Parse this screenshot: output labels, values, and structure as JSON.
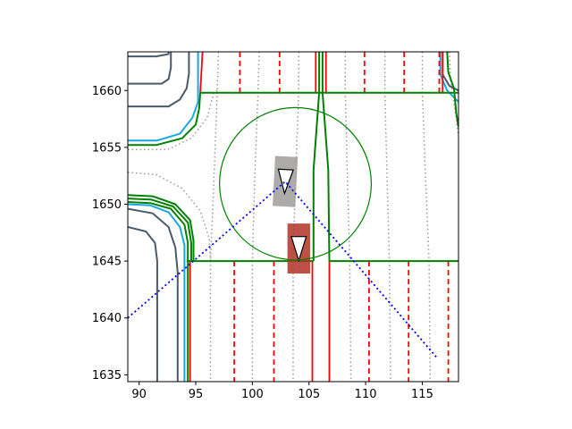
{
  "chart_data": {
    "type": "scatter",
    "title": "",
    "xlabel": "",
    "ylabel": "",
    "xlim": [
      89.0,
      118.2
    ],
    "ylim": [
      1634.4,
      1663.4
    ],
    "xticks": [
      90,
      95,
      100,
      105,
      110,
      115
    ],
    "yticks": [
      1635,
      1640,
      1645,
      1650,
      1655,
      1660
    ],
    "grid": false,
    "legend": "none",
    "colors": {
      "lane_divider": "#ff0000",
      "road_edge": "#008000",
      "curb": "#4a5a6a",
      "sidewalk": "#1aa7e0",
      "centerline": "#999999",
      "view_cone": "#0000ff",
      "ego_vehicle": "#b03228",
      "other_vehicle": "#a09c9c",
      "circle": "#008000"
    },
    "ego_vehicle": {
      "x": 104.1,
      "y": 1646.1,
      "heading_deg": 270,
      "length": 4.4,
      "width": 2.0
    },
    "other_vehicle": {
      "x": 102.9,
      "y": 1652.0,
      "heading_deg": 273,
      "length": 4.4,
      "width": 2.0
    },
    "circle": {
      "center": [
        103.8,
        1651.8
      ],
      "radius": 6.7
    },
    "view_cone": [
      [
        89.0,
        1640.0
      ],
      [
        102.9,
        1652.0
      ],
      [
        116.3,
        1636.5
      ]
    ],
    "road_edges": [
      {
        "id": "top-edge",
        "points": [
          [
            95.4,
            1659.8
          ],
          [
            118.2,
            1659.8
          ]
        ]
      },
      {
        "id": "bottom-edge-left",
        "points": [
          [
            94.2,
            1645.0
          ],
          [
            105.4,
            1645.0
          ]
        ]
      },
      {
        "id": "bottom-edge-right",
        "points": [
          [
            106.8,
            1645.0
          ],
          [
            118.2,
            1645.0
          ]
        ]
      },
      {
        "id": "median-left",
        "points": [
          [
            105.9,
            1663.4
          ],
          [
            105.9,
            1659.8
          ],
          [
            105.4,
            1653.0
          ],
          [
            105.4,
            1645.0
          ]
        ]
      },
      {
        "id": "median-right",
        "points": [
          [
            106.2,
            1663.4
          ],
          [
            106.2,
            1659.8
          ],
          [
            106.7,
            1653.0
          ],
          [
            106.8,
            1645.0
          ]
        ]
      },
      {
        "id": "left-curb-lower-outer",
        "points": [
          [
            89.0,
            1650.2
          ],
          [
            91.0,
            1650.1
          ],
          [
            92.8,
            1649.6
          ],
          [
            94.0,
            1648.2
          ],
          [
            94.3,
            1646.6
          ],
          [
            94.3,
            1634.4
          ]
        ]
      },
      {
        "id": "left-curb-lower-inner",
        "points": [
          [
            89.0,
            1650.5
          ],
          [
            91.1,
            1650.4
          ],
          [
            93.0,
            1649.8
          ],
          [
            94.3,
            1648.4
          ],
          [
            94.6,
            1646.6
          ],
          [
            94.6,
            1645.0
          ]
        ]
      },
      {
        "id": "left-curb-lower-edge",
        "points": [
          [
            89.0,
            1650.8
          ],
          [
            91.2,
            1650.7
          ],
          [
            93.2,
            1650.0
          ],
          [
            94.5,
            1648.6
          ],
          [
            94.8,
            1646.8
          ],
          [
            94.8,
            1645.0
          ]
        ]
      },
      {
        "id": "left-curb-upper",
        "points": [
          [
            89.0,
            1655.2
          ],
          [
            91.5,
            1655.2
          ],
          [
            93.8,
            1655.8
          ],
          [
            95.0,
            1657.0
          ],
          [
            95.3,
            1658.4
          ],
          [
            95.4,
            1659.8
          ]
        ]
      },
      {
        "id": "right-curb-upper",
        "points": [
          [
            117.2,
            1663.4
          ],
          [
            117.3,
            1661.6
          ],
          [
            117.8,
            1660.2
          ],
          [
            118.0,
            1658.0
          ],
          [
            118.2,
            1656.8
          ]
        ]
      }
    ],
    "lane_dividers_solid": [
      {
        "id": "left-top",
        "points": [
          [
            95.6,
            1663.4
          ],
          [
            95.4,
            1659.8
          ]
        ]
      },
      {
        "id": "median-top-left",
        "points": [
          [
            105.6,
            1663.4
          ],
          [
            105.6,
            1659.8
          ]
        ]
      },
      {
        "id": "median-top-right",
        "points": [
          [
            106.5,
            1663.4
          ],
          [
            106.5,
            1659.8
          ]
        ]
      },
      {
        "id": "right-top",
        "points": [
          [
            116.8,
            1663.4
          ],
          [
            116.8,
            1659.8
          ]
        ]
      },
      {
        "id": "left-bottom",
        "points": [
          [
            94.5,
            1645.0
          ],
          [
            94.5,
            1634.4
          ]
        ]
      },
      {
        "id": "median-bottom-left",
        "points": [
          [
            105.3,
            1645.0
          ],
          [
            105.3,
            1634.4
          ]
        ]
      },
      {
        "id": "median-bottom-right",
        "points": [
          [
            106.8,
            1645.0
          ],
          [
            106.8,
            1634.4
          ]
        ]
      }
    ],
    "lane_dividers_dashed": [
      {
        "id": "top-1",
        "points": [
          [
            98.9,
            1663.4
          ],
          [
            98.9,
            1659.8
          ]
        ]
      },
      {
        "id": "top-2",
        "points": [
          [
            102.4,
            1663.4
          ],
          [
            102.4,
            1659.8
          ]
        ]
      },
      {
        "id": "top-3",
        "points": [
          [
            109.9,
            1663.4
          ],
          [
            109.9,
            1659.8
          ]
        ]
      },
      {
        "id": "top-4",
        "points": [
          [
            113.4,
            1663.4
          ],
          [
            113.4,
            1659.8
          ]
        ]
      },
      {
        "id": "top-5",
        "points": [
          [
            116.5,
            1663.4
          ],
          [
            116.5,
            1659.8
          ]
        ]
      },
      {
        "id": "bottom-1",
        "points": [
          [
            98.4,
            1645.0
          ],
          [
            98.4,
            1634.4
          ]
        ]
      },
      {
        "id": "bottom-2",
        "points": [
          [
            101.9,
            1645.0
          ],
          [
            101.9,
            1634.4
          ]
        ]
      },
      {
        "id": "bottom-3",
        "points": [
          [
            110.3,
            1645.0
          ],
          [
            110.3,
            1634.4
          ]
        ]
      },
      {
        "id": "bottom-4",
        "points": [
          [
            113.8,
            1645.0
          ],
          [
            113.8,
            1634.4
          ]
        ]
      },
      {
        "id": "bottom-5",
        "points": [
          [
            117.3,
            1645.0
          ],
          [
            117.3,
            1634.4
          ]
        ]
      }
    ],
    "curbs": [
      {
        "id": "corner-tl-1",
        "points": [
          [
            89.0,
            1663.0
          ],
          [
            91.5,
            1663.0
          ],
          [
            92.6,
            1663.2
          ],
          [
            92.6,
            1663.4
          ]
        ]
      },
      {
        "id": "corner-tl-2",
        "points": [
          [
            89.0,
            1660.6
          ],
          [
            92.0,
            1660.6
          ],
          [
            92.6,
            1661.0
          ],
          [
            92.8,
            1662.0
          ],
          [
            92.8,
            1663.4
          ]
        ]
      },
      {
        "id": "corner-tl-3",
        "points": [
          [
            89.0,
            1658.6
          ],
          [
            92.6,
            1658.6
          ],
          [
            93.6,
            1659.2
          ],
          [
            94.2,
            1660.2
          ],
          [
            94.4,
            1661.5
          ],
          [
            94.4,
            1663.4
          ]
        ]
      },
      {
        "id": "corner-bl-1",
        "points": [
          [
            89.0,
            1648.0
          ],
          [
            90.6,
            1647.6
          ],
          [
            91.4,
            1646.6
          ],
          [
            91.6,
            1645.0
          ],
          [
            91.6,
            1634.4
          ]
        ]
      },
      {
        "id": "corner-bl-2",
        "points": [
          [
            89.0,
            1649.6
          ],
          [
            91.2,
            1649.2
          ],
          [
            92.6,
            1648.0
          ],
          [
            93.2,
            1646.2
          ],
          [
            93.4,
            1644.0
          ],
          [
            93.4,
            1634.4
          ]
        ]
      },
      {
        "id": "corner-tr",
        "points": [
          [
            116.8,
            1663.4
          ],
          [
            116.8,
            1661.4
          ],
          [
            117.4,
            1660.4
          ],
          [
            118.2,
            1660.0
          ]
        ]
      }
    ],
    "sidewalks": [
      {
        "id": "sw-upper",
        "points": [
          [
            89.0,
            1655.6
          ],
          [
            91.6,
            1655.6
          ],
          [
            93.6,
            1656.2
          ],
          [
            94.7,
            1657.6
          ],
          [
            95.2,
            1659.0
          ],
          [
            95.2,
            1663.4
          ]
        ]
      },
      {
        "id": "sw-lower",
        "points": [
          [
            89.0,
            1650.0
          ],
          [
            91.0,
            1649.9
          ],
          [
            92.6,
            1649.3
          ],
          [
            93.6,
            1648.0
          ],
          [
            94.0,
            1646.4
          ],
          [
            94.0,
            1634.4
          ]
        ]
      },
      {
        "id": "sw-right",
        "points": [
          [
            116.6,
            1663.4
          ],
          [
            116.6,
            1661.4
          ],
          [
            117.2,
            1660.0
          ],
          [
            118.2,
            1659.0
          ]
        ]
      }
    ],
    "centerlines": [
      {
        "id": "cl-1",
        "points": [
          [
            97.0,
            1663.4
          ],
          [
            96.9,
            1660.0
          ],
          [
            96.6,
            1652.0
          ],
          [
            96.3,
            1645.0
          ],
          [
            96.3,
            1634.4
          ]
        ]
      },
      {
        "id": "cl-2",
        "points": [
          [
            100.6,
            1663.4
          ],
          [
            100.5,
            1660.0
          ],
          [
            100.2,
            1652.0
          ],
          [
            100.0,
            1645.0
          ],
          [
            100.0,
            1634.4
          ]
        ]
      },
      {
        "id": "cl-3",
        "points": [
          [
            104.1,
            1663.4
          ],
          [
            104.1,
            1660.0
          ],
          [
            103.8,
            1652.0
          ],
          [
            103.6,
            1645.0
          ],
          [
            103.6,
            1634.4
          ]
        ]
      },
      {
        "id": "cl-4",
        "points": [
          [
            108.2,
            1663.4
          ],
          [
            108.2,
            1660.0
          ],
          [
            108.4,
            1652.0
          ],
          [
            108.6,
            1645.0
          ],
          [
            108.7,
            1634.4
          ]
        ]
      },
      {
        "id": "cl-5",
        "points": [
          [
            111.7,
            1663.4
          ],
          [
            111.7,
            1660.0
          ],
          [
            111.9,
            1652.0
          ],
          [
            112.1,
            1645.0
          ],
          [
            112.2,
            1634.4
          ]
        ]
      },
      {
        "id": "cl-6",
        "points": [
          [
            115.0,
            1663.4
          ],
          [
            115.0,
            1660.0
          ],
          [
            115.3,
            1652.0
          ],
          [
            115.6,
            1645.0
          ],
          [
            115.7,
            1634.4
          ]
        ]
      },
      {
        "id": "cl-turn-left",
        "points": [
          [
            89.0,
            1652.8
          ],
          [
            91.5,
            1652.6
          ],
          [
            93.8,
            1651.4
          ],
          [
            95.4,
            1649.4
          ],
          [
            96.2,
            1647.0
          ],
          [
            96.3,
            1645.0
          ]
        ]
      },
      {
        "id": "cl-turn-upper",
        "points": [
          [
            89.0,
            1654.8
          ],
          [
            92.5,
            1654.8
          ],
          [
            94.6,
            1655.8
          ],
          [
            96.0,
            1657.6
          ],
          [
            96.6,
            1659.8
          ],
          [
            96.9,
            1660.0
          ]
        ]
      },
      {
        "id": "cl-turn-right",
        "points": [
          [
            117.4,
            1663.4
          ],
          [
            117.5,
            1661.0
          ],
          [
            117.8,
            1659.0
          ],
          [
            118.2,
            1656.0
          ]
        ]
      }
    ]
  }
}
